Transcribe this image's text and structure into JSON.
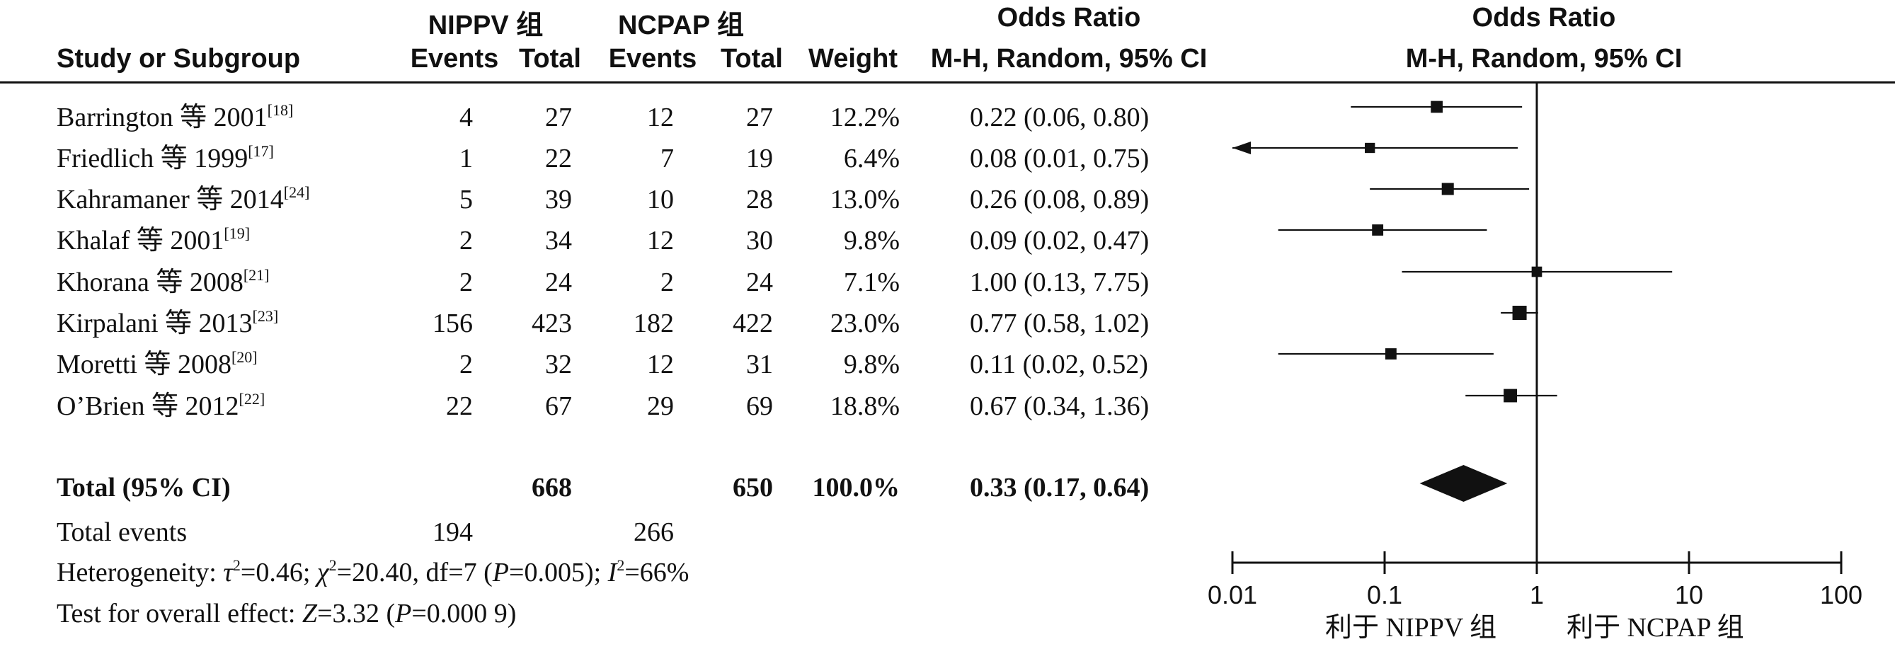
{
  "header": {
    "group1": "NIPPV 组",
    "group2": "NCPAP 组",
    "or_title_left": "Odds Ratio",
    "or_title_right": "Odds Ratio",
    "study_col": "Study or Subgroup",
    "events1": "Events",
    "total1": "Total",
    "events2": "Events",
    "total2": "Total",
    "weight": "Weight",
    "method_left": "M-H, Random, 95% CI",
    "method_right": "M-H, Random, 95% CI"
  },
  "studies": [
    {
      "name": "Barrington 等 2001",
      "ref": "[18]",
      "e1": "4",
      "t1": "27",
      "e2": "12",
      "t2": "27",
      "weight": "12.2%",
      "ci_text": "0.22 (0.06, 0.80)"
    },
    {
      "name": "Friedlich 等 1999",
      "ref": "[17]",
      "e1": "1",
      "t1": "22",
      "e2": "7",
      "t2": "19",
      "weight": "6.4%",
      "ci_text": "0.08 (0.01, 0.75)"
    },
    {
      "name": "Kahramaner 等 2014",
      "ref": "[24]",
      "e1": "5",
      "t1": "39",
      "e2": "10",
      "t2": "28",
      "weight": "13.0%",
      "ci_text": "0.26 (0.08, 0.89)"
    },
    {
      "name": "Khalaf 等 2001",
      "ref": "[19]",
      "e1": "2",
      "t1": "34",
      "e2": "12",
      "t2": "30",
      "weight": "9.8%",
      "ci_text": "0.09 (0.02, 0.47)"
    },
    {
      "name": "Khorana 等 2008",
      "ref": "[21]",
      "e1": "2",
      "t1": "24",
      "e2": "2",
      "t2": "24",
      "weight": "7.1%",
      "ci_text": "1.00 (0.13, 7.75)"
    },
    {
      "name": "Kirpalani 等 2013",
      "ref": "[23]",
      "e1": "156",
      "t1": "423",
      "e2": "182",
      "t2": "422",
      "weight": "23.0%",
      "ci_text": "0.77 (0.58, 1.02)"
    },
    {
      "name": "Moretti 等 2008",
      "ref": "[20]",
      "e1": "2",
      "t1": "32",
      "e2": "12",
      "t2": "31",
      "weight": "9.8%",
      "ci_text": "0.11 (0.02, 0.52)"
    },
    {
      "name": "O’Brien 等 2012",
      "ref": "[22]",
      "e1": "22",
      "t1": "67",
      "e2": "29",
      "t2": "69",
      "weight": "18.8%",
      "ci_text": "0.67 (0.34, 1.36)"
    }
  ],
  "total": {
    "label": "Total (95% CI)",
    "t1": "668",
    "t2": "650",
    "weight": "100.0%",
    "ci_text": "0.33 (0.17, 0.64)"
  },
  "total_events": {
    "label": "Total events",
    "e1": "194",
    "e2": "266"
  },
  "heterogeneity": {
    "prefix": "Heterogeneity: ",
    "tau_sym": "τ",
    "tau_val": "=0.46; ",
    "chi_sym": "χ",
    "chi_val": "=20.40, df=7 (",
    "p_sym": "P",
    "p_val": "=0.005); ",
    "i_sym": "I",
    "i_val": "=66%"
  },
  "overall": {
    "prefix": "Test for overall effect: ",
    "z_sym": "Z",
    "z_val": "=3.32 (",
    "p_sym": "P",
    "p_val": "=0.000 9)"
  },
  "favours": {
    "left": "利于 NIPPV 组",
    "right": "利于 NCPAP 组"
  },
  "chart_data": {
    "type": "forest",
    "scale": "log",
    "xlim": [
      0.01,
      100
    ],
    "x_ticks": [
      0.01,
      0.1,
      1,
      10,
      100
    ],
    "tick_labels": [
      "0.01",
      "0.1",
      "1",
      "10",
      "100"
    ],
    "reference_line": 1,
    "xlabel_left": "利于 NIPPV 组",
    "xlabel_right": "利于 NCPAP 组",
    "studies": [
      {
        "name": "Barrington 等 2001",
        "or": 0.22,
        "lo": 0.06,
        "hi": 0.8,
        "weight": 12.2
      },
      {
        "name": "Friedlich 等 1999",
        "or": 0.08,
        "lo": 0.01,
        "hi": 0.75,
        "weight": 6.4
      },
      {
        "name": "Kahramaner 等 2014",
        "or": 0.26,
        "lo": 0.08,
        "hi": 0.89,
        "weight": 13.0
      },
      {
        "name": "Khalaf 等 2001",
        "or": 0.09,
        "lo": 0.02,
        "hi": 0.47,
        "weight": 9.8
      },
      {
        "name": "Khorana 等 2008",
        "or": 1.0,
        "lo": 0.13,
        "hi": 7.75,
        "weight": 7.1
      },
      {
        "name": "Kirpalani 等 2013",
        "or": 0.77,
        "lo": 0.58,
        "hi": 1.02,
        "weight": 23.0
      },
      {
        "name": "Moretti 等 2008",
        "or": 0.11,
        "lo": 0.02,
        "hi": 0.52,
        "weight": 9.8
      },
      {
        "name": "O’Brien 等 2012",
        "or": 0.67,
        "lo": 0.34,
        "hi": 1.36,
        "weight": 18.8
      }
    ],
    "pooled": {
      "or": 0.33,
      "lo": 0.17,
      "hi": 0.64
    }
  }
}
